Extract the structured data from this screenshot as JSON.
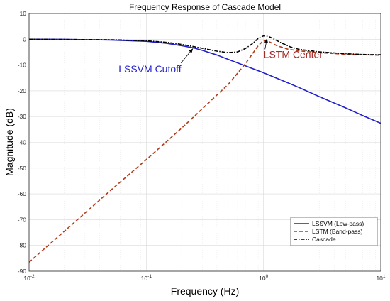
{
  "chart_data": {
    "type": "line",
    "title": "Frequency Response of Cascade Model",
    "xlabel": "Frequency (Hz)",
    "ylabel": "Magnitude (dB)",
    "xscale": "log",
    "xlim": [
      0.01,
      10
    ],
    "ylim": [
      -90,
      10
    ],
    "grid": true,
    "legend_position": "bottom-right",
    "y_ticks": [
      "10",
      "0",
      "-10",
      "-20",
      "-30",
      "-40",
      "-50",
      "-60",
      "-70",
      "-80",
      "-90"
    ],
    "x_ticks": [
      {
        "base": "10",
        "exp": "-2"
      },
      {
        "base": "10",
        "exp": "-1"
      },
      {
        "base": "10",
        "exp": "0"
      },
      {
        "base": "10",
        "exp": "1"
      }
    ],
    "series": [
      {
        "name": "LSSVM (Low-pass)",
        "color": "#1f1fcc",
        "style": "solid",
        "x": [
          0.01,
          0.02,
          0.05,
          0.1,
          0.15,
          0.2,
          0.25,
          0.3,
          0.4,
          0.5,
          0.7,
          1,
          1.5,
          2,
          3,
          5,
          7,
          10
        ],
        "y": [
          0,
          -0.05,
          -0.3,
          -0.8,
          -1.6,
          -2.5,
          -3.3,
          -4.3,
          -6.1,
          -7.8,
          -10.3,
          -13,
          -16.3,
          -18.7,
          -22.3,
          -26.6,
          -29.6,
          -32.6
        ]
      },
      {
        "name": "LSTM (Band-pass)",
        "color": "#b03a1a",
        "style": "dashed",
        "x": [
          0.01,
          0.02,
          0.05,
          0.1,
          0.2,
          0.3,
          0.5,
          0.7,
          0.9,
          1.0,
          1.1,
          1.3,
          1.6,
          2,
          3,
          5,
          7,
          10
        ],
        "y": [
          -86.5,
          -74.5,
          -58.5,
          -46.7,
          -34.5,
          -27.0,
          -17.5,
          -9.5,
          -2.5,
          -0.5,
          -0.8,
          -2.5,
          -3.8,
          -4.5,
          -5.2,
          -5.8,
          -6.0,
          -6.2
        ]
      },
      {
        "name": "Cascade",
        "color": "#000000",
        "style": "dashdot",
        "x": [
          0.01,
          0.05,
          0.1,
          0.15,
          0.2,
          0.25,
          0.3,
          0.4,
          0.5,
          0.6,
          0.7,
          0.8,
          0.9,
          1.0,
          1.1,
          1.2,
          1.4,
          1.7,
          2,
          3,
          5,
          7,
          10
        ],
        "y": [
          0,
          -0.2,
          -0.6,
          -1.2,
          -2.0,
          -2.8,
          -3.5,
          -4.6,
          -5.2,
          -4.9,
          -3.6,
          -1.8,
          0.3,
          1.3,
          1.1,
          0.3,
          -1.3,
          -3.0,
          -3.9,
          -4.9,
          -5.6,
          -5.9,
          -6.0
        ]
      }
    ],
    "annotations": [
      {
        "text": "LSSVM Cutoff",
        "color": "#1f1fcc",
        "text_x": 0.058,
        "text_y": -12.8,
        "arrow_to_x": 0.25,
        "arrow_to_y": -3.6
      },
      {
        "text": "LSTM Center",
        "color": "#a52a2a",
        "text_x": 1.0,
        "text_y": -7.2,
        "arrow_to_x": 1.07,
        "arrow_to_y": 0.3
      }
    ]
  }
}
